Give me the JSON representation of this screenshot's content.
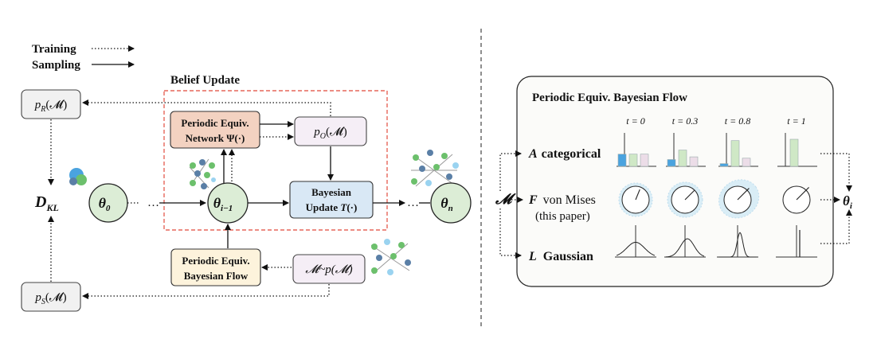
{
  "legend": {
    "training_label": "Training",
    "sampling_label": "Sampling"
  },
  "left": {
    "belief_update_title": "Belief Update",
    "p_r": {
      "main": "p",
      "sub": "R",
      "arg": "(𝓜)"
    },
    "p_s": {
      "main": "p",
      "sub": "S",
      "arg": "(𝓜)"
    },
    "p_o": {
      "main": "p",
      "sub": "O",
      "arg": "(𝓜)"
    },
    "d_kl": {
      "main": "D",
      "sub": "KL"
    },
    "theta_0": {
      "main": "θ",
      "sub": "0"
    },
    "theta_im1": {
      "main": "θ",
      "sub": "i−1"
    },
    "theta_n": {
      "main": "θ",
      "sub": "n"
    },
    "dots": "…",
    "network": {
      "line1": "Periodic Equiv.",
      "line2": "Network Ψ(·)"
    },
    "bayesian_update": {
      "line1": "Bayesian",
      "line2_text": "Update ",
      "line2_sym": "T",
      "line2_arg": "(·)"
    },
    "bayesian_flow": {
      "line1": "Periodic Equiv.",
      "line2": "Bayesian Flow"
    },
    "m_sample": "𝓜~p(𝓜)"
  },
  "right": {
    "panel_title": "Periodic Equiv. Bayesian Flow",
    "time_labels": [
      "t = 0",
      "t = 0.3",
      "t = 0.8",
      "t = 1"
    ],
    "times": [
      0,
      0.3,
      0.8,
      1
    ],
    "m_symbol": "𝓜",
    "theta_i": {
      "main": "θ",
      "sub": "i"
    },
    "rows": [
      {
        "symbol": "A",
        "name": "categorical",
        "note": ""
      },
      {
        "symbol": "F",
        "name": "von Mises",
        "note": "(this paper)"
      },
      {
        "symbol": "L",
        "name": "Gaussian",
        "note": ""
      }
    ],
    "categorical_bars": [
      [
        0.45,
        0.45,
        0.45
      ],
      [
        0.25,
        0.6,
        0.35
      ],
      [
        0.1,
        0.95,
        0.3
      ],
      [
        0.0,
        1.0,
        0.0
      ]
    ],
    "gaussian_peaks": [
      0.3,
      0.5,
      0.85,
      1.0
    ],
    "colors": {
      "bar_blue": "#4aa3df",
      "bar_green": "#cfe8c6",
      "bar_pink": "#ecdde8",
      "circle_blue": "#bfe2f5",
      "network_fill": "#f3d2c1",
      "update_fill": "#d9e8f5",
      "flow_fill": "#fdf3dc",
      "po_fill": "#f5eef6",
      "theta_fill": "#dcedd6",
      "dashed_red": "#e6665a"
    }
  }
}
